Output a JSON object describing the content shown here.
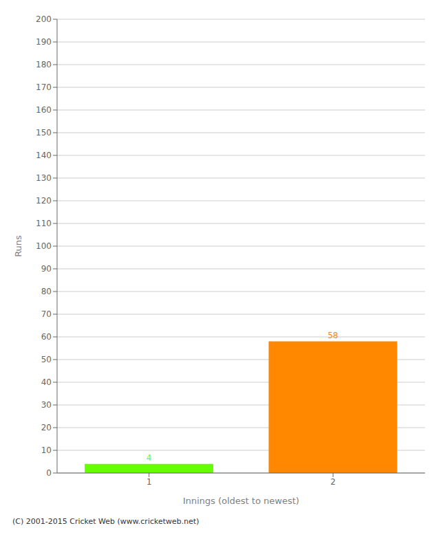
{
  "chart_data": {
    "type": "bar",
    "categories": [
      "1",
      "2"
    ],
    "values": [
      4,
      58
    ],
    "colors": [
      "#66ff00",
      "#ff8800"
    ],
    "xlabel": "Innings (oldest to newest)",
    "ylabel": "Runs",
    "ylim": [
      0,
      200
    ],
    "yticks": [
      0,
      10,
      20,
      30,
      40,
      50,
      60,
      70,
      80,
      90,
      100,
      110,
      120,
      130,
      140,
      150,
      160,
      170,
      180,
      190,
      200
    ],
    "grid": true,
    "data_labels": true,
    "annotations": [
      "(C) 2001-2015 Cricket Web (www.cricketweb.net)"
    ]
  }
}
